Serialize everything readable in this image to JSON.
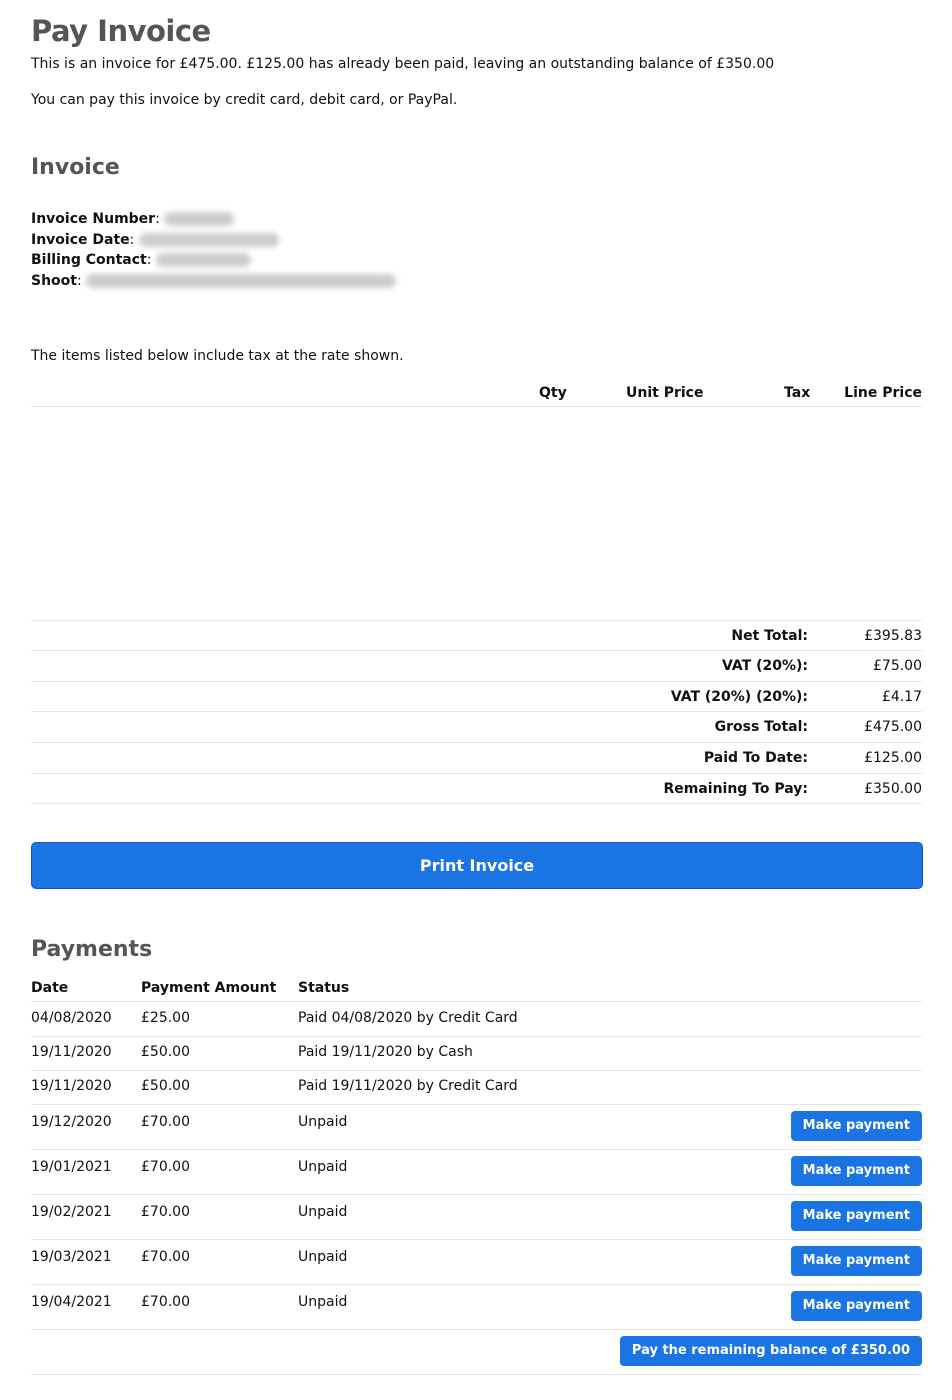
{
  "page": {
    "title": "Pay Invoice",
    "summary": "This is an invoice for £475.00. £125.00 has already been paid, leaving an outstanding balance of £350.00",
    "methods": "You can pay this invoice by credit card, debit card, or PayPal."
  },
  "invoice": {
    "heading": "Invoice",
    "fields": [
      {
        "label": "Invoice Number"
      },
      {
        "label": "Invoice Date"
      },
      {
        "label": "Billing Contact"
      },
      {
        "label": "Shoot"
      }
    ],
    "tax_note": "The items listed below include tax at the rate shown.",
    "columns": [
      "Qty",
      "Unit Price",
      "Tax",
      "Line Price"
    ],
    "totals": [
      {
        "label": "Net Total:",
        "value": "£395.83"
      },
      {
        "label": "VAT (20%):",
        "value": "£75.00"
      },
      {
        "label": "VAT (20%) (20%):",
        "value": "£4.17"
      },
      {
        "label": "Gross Total:",
        "value": "£475.00"
      },
      {
        "label": "Paid To Date:",
        "value": "£125.00"
      },
      {
        "label": "Remaining To Pay:",
        "value": "£350.00"
      }
    ],
    "print_label": "Print Invoice"
  },
  "payments": {
    "heading": "Payments",
    "columns": [
      "Date",
      "Payment Amount",
      "Status"
    ],
    "rows": [
      {
        "date": "04/08/2020",
        "amount": "£25.00",
        "status": "Paid 04/08/2020 by Credit Card"
      },
      {
        "date": "19/11/2020",
        "amount": "£50.00",
        "status": "Paid 19/11/2020 by Cash"
      },
      {
        "date": "19/11/2020",
        "amount": "£50.00",
        "status": "Paid 19/11/2020 by Credit Card"
      },
      {
        "date": "19/12/2020",
        "amount": "£70.00",
        "status": "Unpaid",
        "action": "Make payment"
      },
      {
        "date": "19/01/2021",
        "amount": "£70.00",
        "status": "Unpaid",
        "action": "Make payment"
      },
      {
        "date": "19/02/2021",
        "amount": "£70.00",
        "status": "Unpaid",
        "action": "Make payment"
      },
      {
        "date": "19/03/2021",
        "amount": "£70.00",
        "status": "Unpaid",
        "action": "Make payment"
      },
      {
        "date": "19/04/2021",
        "amount": "£70.00",
        "status": "Unpaid",
        "action": "Make payment"
      }
    ],
    "pay_all_label": "Pay the remaining balance of £350.00"
  },
  "colors": {
    "primary": "#1b74e4",
    "heading": "#555555"
  }
}
